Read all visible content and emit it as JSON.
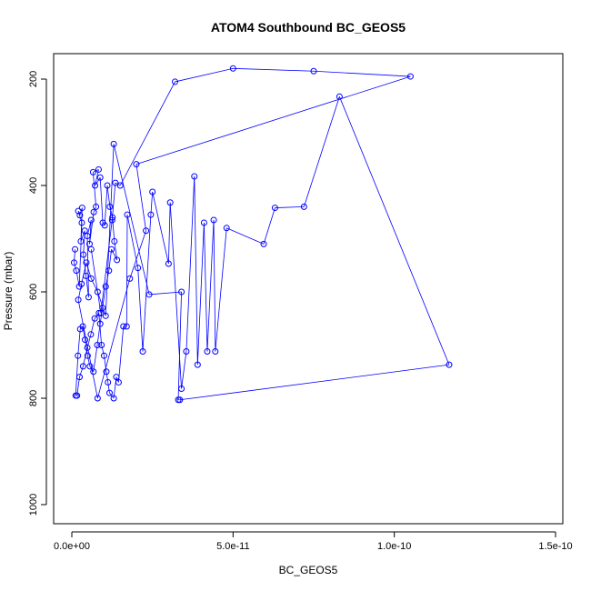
{
  "chart_data": {
    "type": "line",
    "title": "ATOM4 Southbound BC_GEOS5",
    "xlabel": "BC_GEOS5",
    "ylabel": "Pressure (mbar)",
    "xlim": [
      0,
      1.5e-10
    ],
    "ylim": [
      1040,
      160
    ],
    "y_reversed": true,
    "grid": false,
    "legend": "none",
    "x_ticks": [
      0,
      5e-11,
      1e-10,
      1.5e-10
    ],
    "x_tick_labels": [
      "0.0e+00",
      "5.0e-11",
      "1.0e-10",
      "1.5e-10"
    ],
    "y_ticks": [
      200,
      400,
      600,
      800,
      1000
    ],
    "y_tick_labels": [
      "200",
      "400",
      "600",
      "800",
      "1000"
    ],
    "line_color": "#0000ff",
    "series": [
      {
        "x": [
          1e-12,
          7e-13,
          1.4e-12,
          2.3e-12,
          3.1e-12,
          2e-12,
          2.5e-12,
          3.2e-12,
          2.8e-12,
          4e-12,
          3.6e-12,
          4.4e-12,
          5.2e-12,
          4.8e-12,
          6e-12,
          5.5e-12,
          6.8e-12,
          7.5e-12,
          6.6e-12,
          8.3e-12,
          7.2e-12,
          8.8e-12,
          9.6e-12,
          1.02e-11,
          1.1e-11,
          1.18e-11,
          1.26e-11,
          1.32e-11,
          1.4e-11,
          1.23e-11,
          1.15e-11,
          1.05e-11,
          9.5e-12,
          8.8e-12,
          7.9e-12,
          6.7e-12,
          5.6e-12,
          4.9e-12,
          4.1e-12,
          3.4e-12,
          2.6e-12,
          1.9e-12,
          1.2e-12,
          1.6e-12,
          2.4e-12,
          3.5e-12,
          4.8e-12,
          5.9e-12,
          7.1e-12,
          8.4e-12,
          9.2e-12,
          1e-11,
          1.07e-11,
          1.12e-11,
          1.17e-11,
          1.3e-11,
          1.38e-11,
          1.45e-11,
          1.6e-11,
          1.7e-11,
          1.72e-11,
          2.05e-11,
          2.2e-11,
          2.45e-11,
          2.5e-11,
          3e-11,
          3.05e-11,
          3.4e-11,
          3.55e-11,
          3.8e-11,
          3.9e-11,
          4.1e-11,
          4.2e-11,
          4.4e-11,
          4.45e-11,
          4.8e-11,
          5.95e-11,
          6.3e-11,
          7.2e-11,
          8.3e-11,
          1.17e-10,
          3.35e-11,
          3.3e-11,
          3.4e-11,
          2.4e-11,
          1.3e-11,
          1.05e-11,
          8e-12,
          6e-12,
          4.5e-12,
          3e-12,
          2e-12,
          8e-12,
          1.8e-11,
          2.3e-11,
          2e-11,
          1.05e-10,
          7.5e-11,
          5e-11,
          3.2e-11,
          1.5e-11,
          1.35e-11,
          1.25e-11,
          9e-12,
          6e-12
        ],
        "y": [
          520,
          545,
          560,
          590,
          470,
          448,
          456,
          442,
          505,
          485,
          530,
          570,
          610,
          495,
          465,
          510,
          450,
          440,
          375,
          370,
          400,
          385,
          470,
          475,
          400,
          440,
          460,
          505,
          540,
          520,
          560,
          590,
          630,
          660,
          700,
          750,
          740,
          720,
          690,
          665,
          670,
          720,
          795,
          795,
          760,
          740,
          705,
          680,
          650,
          640,
          700,
          720,
          750,
          770,
          790,
          800,
          760,
          770,
          665,
          665,
          455,
          555,
          712,
          455,
          412,
          547,
          432,
          782,
          712,
          383,
          737,
          470,
          712,
          465,
          712,
          480,
          510,
          442,
          440,
          233,
          737,
          803,
          803,
          600,
          605,
          322,
          645,
          600,
          575,
          545,
          585,
          615,
          800,
          575,
          485,
          360,
          195,
          185,
          180,
          205,
          400,
          395,
          465,
          640,
          520
        ]
      }
    ]
  }
}
